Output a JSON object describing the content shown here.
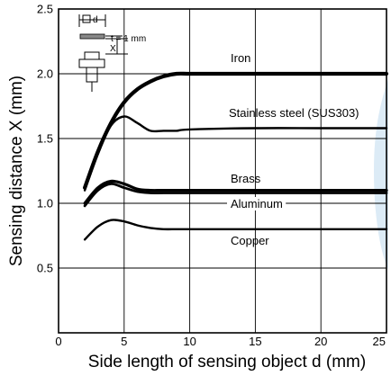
{
  "chart_data": {
    "type": "line",
    "title": "",
    "xlabel": "Side length of sensing object d (mm)",
    "ylabel": "Sensing distance X (mm)",
    "xlim": [
      0,
      25
    ],
    "ylim": [
      0,
      2.5
    ],
    "xticks": [
      "0",
      "5",
      "10",
      "15",
      "20",
      "25"
    ],
    "yticks": [
      "0.5",
      "1.0",
      "1.5",
      "2.0",
      "2.5"
    ],
    "grid": true,
    "series": [
      {
        "name": "Iron",
        "x": [
          2,
          3,
          4,
          5,
          6,
          7,
          8,
          9,
          10,
          12,
          15,
          20,
          25
        ],
        "y": [
          1.12,
          1.4,
          1.62,
          1.78,
          1.88,
          1.94,
          1.98,
          2.0,
          2.0,
          2.0,
          2.0,
          2.0,
          2.0
        ]
      },
      {
        "name": "Stainless steel (SUS303)",
        "x": [
          2,
          3,
          4,
          5,
          6,
          7,
          8,
          9,
          10,
          15,
          20,
          25
        ],
        "y": [
          1.1,
          1.38,
          1.6,
          1.67,
          1.62,
          1.56,
          1.56,
          1.56,
          1.57,
          1.58,
          1.58,
          1.58
        ]
      },
      {
        "name": "Brass",
        "x": [
          2,
          3,
          4,
          5,
          6,
          7,
          8,
          10,
          15,
          20,
          25
        ],
        "y": [
          1.0,
          1.12,
          1.17,
          1.15,
          1.11,
          1.1,
          1.1,
          1.1,
          1.1,
          1.1,
          1.1
        ]
      },
      {
        "name": "Aluminum",
        "x": [
          2,
          3,
          4,
          5,
          6,
          7,
          8,
          10,
          15,
          20,
          25
        ],
        "y": [
          0.98,
          1.1,
          1.15,
          1.12,
          1.09,
          1.08,
          1.08,
          1.08,
          1.08,
          1.08,
          1.08
        ]
      },
      {
        "name": "Copper",
        "x": [
          2,
          3,
          4,
          5,
          6,
          7,
          8,
          9,
          10,
          15,
          20,
          25
        ],
        "y": [
          0.72,
          0.82,
          0.87,
          0.86,
          0.83,
          0.81,
          0.8,
          0.8,
          0.8,
          0.8,
          0.8,
          0.8
        ]
      }
    ],
    "series_labels": [
      "Iron",
      "Stainless steel (SUS303)",
      "Brass",
      "Aluminum",
      "Copper"
    ],
    "inset": {
      "d_label": "d",
      "x_label": "X",
      "t_label": "t = 1 mm"
    }
  }
}
